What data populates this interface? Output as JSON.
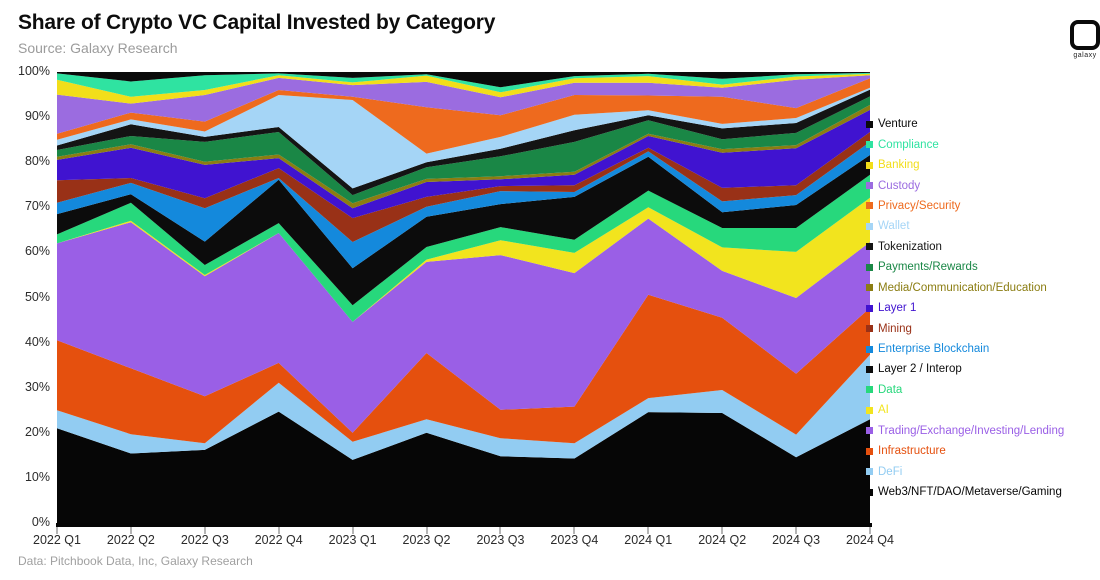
{
  "header": {
    "title": "Share of Crypto VC Capital Invested by Category",
    "subtitle": "Source: Galaxy Research",
    "logo_text": "galaxy"
  },
  "footer": {
    "caption": "Data: Pitchbook Data, Inc, Galaxy Research"
  },
  "chart_data": {
    "type": "area",
    "variant": "100%-stacked",
    "title": "Share of Crypto VC Capital Invested by Category",
    "xlabel": "",
    "ylabel": "",
    "ylim": [
      0,
      100
    ],
    "grid": false,
    "legend_position": "right",
    "y_tick_labels": [
      "0%",
      "10%",
      "20%",
      "30%",
      "40%",
      "50%",
      "60%",
      "70%",
      "80%",
      "90%",
      "100%"
    ],
    "categories": [
      "2022 Q1",
      "2022 Q2",
      "2022 Q3",
      "2022 Q4",
      "2023 Q1",
      "2023 Q2",
      "2023 Q3",
      "2023 Q4",
      "2024 Q1",
      "2024 Q2",
      "2024 Q3",
      "2024 Q4"
    ],
    "series_note": "values are percent of total; series listed in legend order (top of stack first); stacked bottom-to-top in reverse order",
    "series": [
      {
        "name": "Venture",
        "color": "#0a0a0a",
        "values": [
          0.3,
          2.1,
          0.7,
          0.3,
          1.3,
          0.5,
          3.4,
          0.9,
          0.4,
          1.5,
          0.5,
          0.2
        ]
      },
      {
        "name": "Compliance",
        "color": "#2fe3a1",
        "values": [
          1.4,
          3.4,
          3.3,
          0.4,
          1.0,
          0.3,
          1.1,
          0.5,
          0.5,
          1.3,
          0.5,
          0.2
        ]
      },
      {
        "name": "Banking",
        "color": "#f2de1a",
        "values": [
          3.3,
          1.5,
          1.1,
          0.6,
          0.6,
          1.4,
          1.1,
          1.0,
          1.5,
          0.7,
          0.7,
          0.3
        ]
      },
      {
        "name": "Custody",
        "color": "#9b6ce0",
        "values": [
          8.7,
          2.0,
          5.9,
          2.7,
          2.6,
          5.6,
          4.0,
          2.7,
          2.8,
          2.0,
          6.3,
          0.7
        ]
      },
      {
        "name": "Privacy/Security",
        "color": "#ee6a1e",
        "values": [
          1.3,
          1.5,
          2.2,
          1.1,
          0.7,
          10.3,
          4.8,
          4.4,
          3.3,
          6.0,
          2.2,
          2.1
        ]
      },
      {
        "name": "Wallet",
        "color": "#a5d5f6",
        "values": [
          1.3,
          1.1,
          1.2,
          7.1,
          19.6,
          1.9,
          2.6,
          3.4,
          1.1,
          1.0,
          1.1,
          0.4
        ]
      },
      {
        "name": "Tokenization",
        "color": "#141414",
        "values": [
          1.0,
          2.6,
          1.1,
          1.1,
          1.5,
          1.1,
          1.7,
          2.6,
          1.1,
          2.4,
          2.2,
          1.5
        ]
      },
      {
        "name": "Payments/Rewards",
        "color": "#1a8746",
        "values": [
          1.5,
          1.8,
          4.4,
          5.0,
          1.8,
          2.6,
          4.4,
          6.6,
          3.0,
          2.2,
          2.7,
          1.9
        ]
      },
      {
        "name": "Media/Communication/Education",
        "color": "#8b7d12",
        "values": [
          0.7,
          0.8,
          0.7,
          0.8,
          1.1,
          0.7,
          0.7,
          0.7,
          0.5,
          0.8,
          0.7,
          1.1
        ]
      },
      {
        "name": "Layer 1",
        "color": "#4013d0",
        "values": [
          4.5,
          6.7,
          7.4,
          2.2,
          2.2,
          3.3,
          1.5,
          2.3,
          2.6,
          7.8,
          8.2,
          4.9
        ]
      },
      {
        "name": "Mining",
        "color": "#993117",
        "values": [
          5.0,
          1.1,
          2.2,
          2.2,
          5.3,
          2.2,
          1.1,
          1.5,
          0.8,
          3.0,
          2.2,
          2.2
        ]
      },
      {
        "name": "Enterprise Blockchain",
        "color": "#1489dc",
        "values": [
          2.5,
          2.5,
          7.4,
          0.4,
          5.8,
          2.2,
          2.9,
          1.1,
          1.2,
          2.4,
          2.2,
          2.9
        ]
      },
      {
        "name": "Layer 2 / Interop",
        "color": "#0c0c0c",
        "values": [
          4.5,
          1.9,
          5.2,
          9.6,
          8.2,
          6.7,
          5.1,
          9.5,
          7.5,
          3.5,
          5.1,
          4.4
        ]
      },
      {
        "name": "Data",
        "color": "#27d87c",
        "values": [
          2.0,
          4.0,
          2.2,
          2.2,
          3.7,
          2.8,
          2.9,
          2.9,
          3.7,
          4.3,
          5.3,
          5.1
        ]
      },
      {
        "name": "AI",
        "color": "#f2e41e",
        "values": [
          0.0,
          0.3,
          0.3,
          0.0,
          0.0,
          0.5,
          3.3,
          4.5,
          2.5,
          5.2,
          10.2,
          9.8
        ]
      },
      {
        "name": "Trading/Exchange/Investing/Lending",
        "color": "#9a5fe6",
        "values": [
          21.5,
          32.4,
          26.6,
          28.8,
          24.6,
          20.2,
          34.3,
          29.6,
          16.9,
          10.4,
          16.8,
          14.6
        ]
      },
      {
        "name": "Infrastructure",
        "color": "#e5500e",
        "values": [
          15.5,
          14.6,
          10.4,
          4.4,
          2.0,
          14.7,
          6.3,
          8.1,
          22.9,
          16.0,
          13.5,
          10.4
        ]
      },
      {
        "name": "DeFi",
        "color": "#92ccf2",
        "values": [
          4.0,
          4.3,
          1.5,
          6.4,
          4.0,
          3.0,
          4.0,
          3.4,
          3.1,
          5.1,
          5.0,
          14.3
        ]
      },
      {
        "name": "Web3/NFT/DAO/Metaverse/Gaming",
        "color": "#060606",
        "values": [
          21.0,
          15.4,
          16.2,
          24.7,
          14.0,
          20.0,
          14.8,
          14.3,
          24.6,
          24.4,
          14.6,
          23.0
        ]
      }
    ]
  }
}
